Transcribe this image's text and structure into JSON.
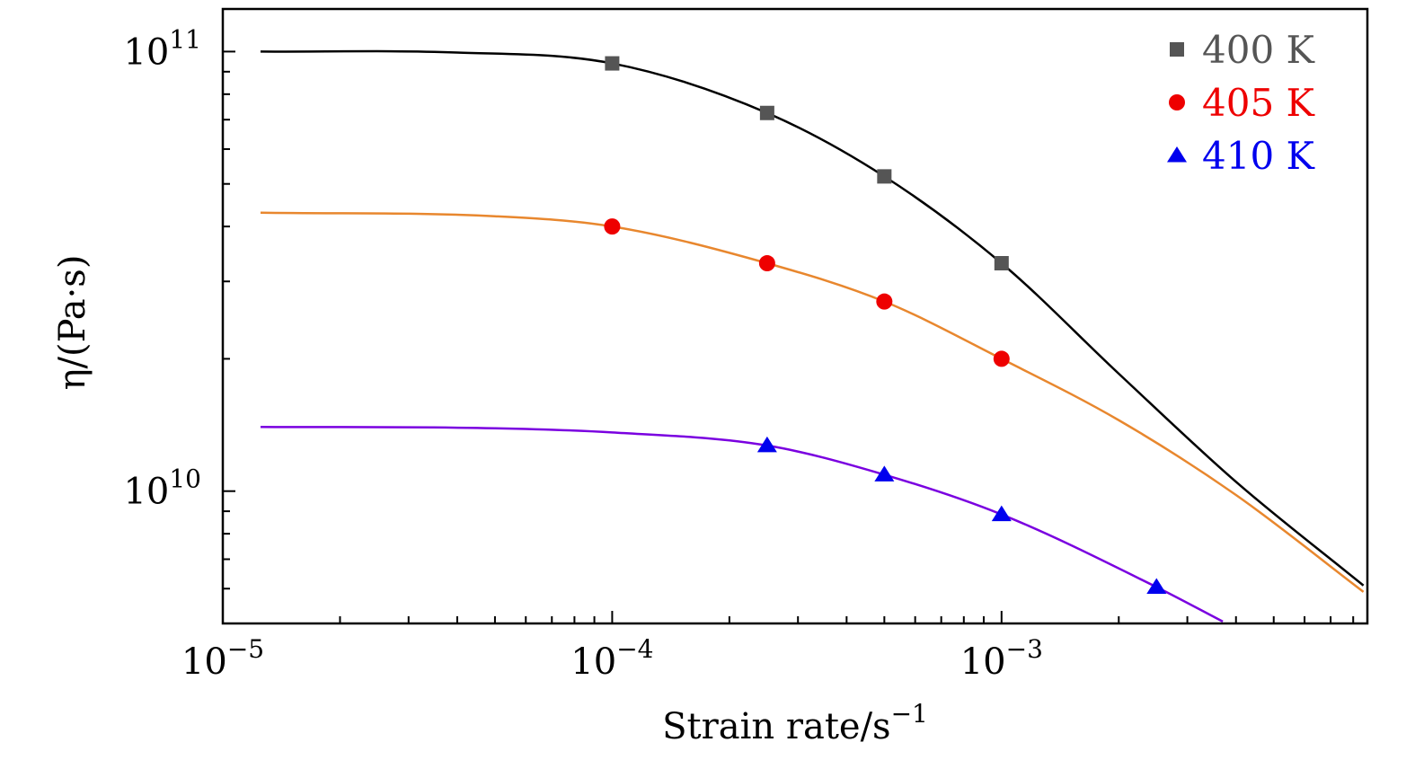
{
  "chart_data": {
    "type": "line",
    "xlabel": "Strain rate/s",
    "xlabel_sup": "−1",
    "ylabel": "η/(Pa·s)",
    "xscale": "log",
    "yscale": "log",
    "xlim": [
      1e-05,
      0.0087
    ],
    "ylim": [
      5000000000.0,
      125000000000.0
    ],
    "x_ticks": [
      {
        "value": 1e-05,
        "base": "10",
        "exp": "−5"
      },
      {
        "value": 0.0001,
        "base": "10",
        "exp": "−4"
      },
      {
        "value": 0.001,
        "base": "10",
        "exp": "−3"
      }
    ],
    "y_ticks": [
      {
        "value": 10000000000.0,
        "base": "10",
        "exp": "10"
      },
      {
        "value": 100000000000.0,
        "base": "10",
        "exp": "11"
      }
    ],
    "legend_position": "top-right",
    "series": [
      {
        "name": "400 K",
        "marker": "square",
        "marker_color": "#555555",
        "line_color": "#000000",
        "points": [
          [
            0.0001,
            94000000000.0
          ],
          [
            0.00025,
            72500000000.0
          ],
          [
            0.0005,
            52000000000.0
          ],
          [
            0.001,
            33000000000.0
          ]
        ],
        "fit": [
          [
            1.25e-05,
            100000000000.0
          ],
          [
            4e-05,
            99500000000.0
          ],
          [
            0.0001,
            94000000000.0
          ],
          [
            0.00025,
            72500000000.0
          ],
          [
            0.0005,
            52000000000.0
          ],
          [
            0.001,
            33000000000.0
          ],
          [
            0.002,
            18500000000.0
          ],
          [
            0.004,
            10500000000.0
          ],
          [
            0.0085,
            6100000000.0
          ]
        ]
      },
      {
        "name": "405 K",
        "marker": "circle",
        "marker_color": "#ee0000",
        "line_color": "#e8872e",
        "points": [
          [
            0.0001,
            40000000000.0
          ],
          [
            0.00025,
            33000000000.0
          ],
          [
            0.0005,
            27000000000.0
          ],
          [
            0.001,
            20000000000.0
          ]
        ],
        "fit": [
          [
            1.25e-05,
            43000000000.0
          ],
          [
            5e-05,
            42200000000.0
          ],
          [
            0.0001,
            40000000000.0
          ],
          [
            0.00025,
            33000000000.0
          ],
          [
            0.0005,
            27000000000.0
          ],
          [
            0.001,
            20000000000.0
          ],
          [
            0.002,
            14500000000.0
          ],
          [
            0.004,
            9800000000.0
          ],
          [
            0.0085,
            5900000000.0
          ]
        ]
      },
      {
        "name": "410 K",
        "marker": "triangle",
        "marker_color": "#0000ee",
        "line_color": "#7a00e0",
        "points": [
          [
            0.00025,
            12700000000.0
          ],
          [
            0.0005,
            10900000000.0
          ],
          [
            0.001,
            8850000000.0
          ],
          [
            0.0025,
            6050000000.0
          ]
        ],
        "fit": [
          [
            1.25e-05,
            14000000000.0
          ],
          [
            5e-05,
            13900000000.0
          ],
          [
            0.0001,
            13600000000.0
          ],
          [
            0.00025,
            12700000000.0
          ],
          [
            0.0005,
            10900000000.0
          ],
          [
            0.001,
            8850000000.0
          ],
          [
            0.0025,
            6050000000.0
          ],
          [
            0.0037,
            5050000000.0
          ]
        ]
      }
    ]
  }
}
